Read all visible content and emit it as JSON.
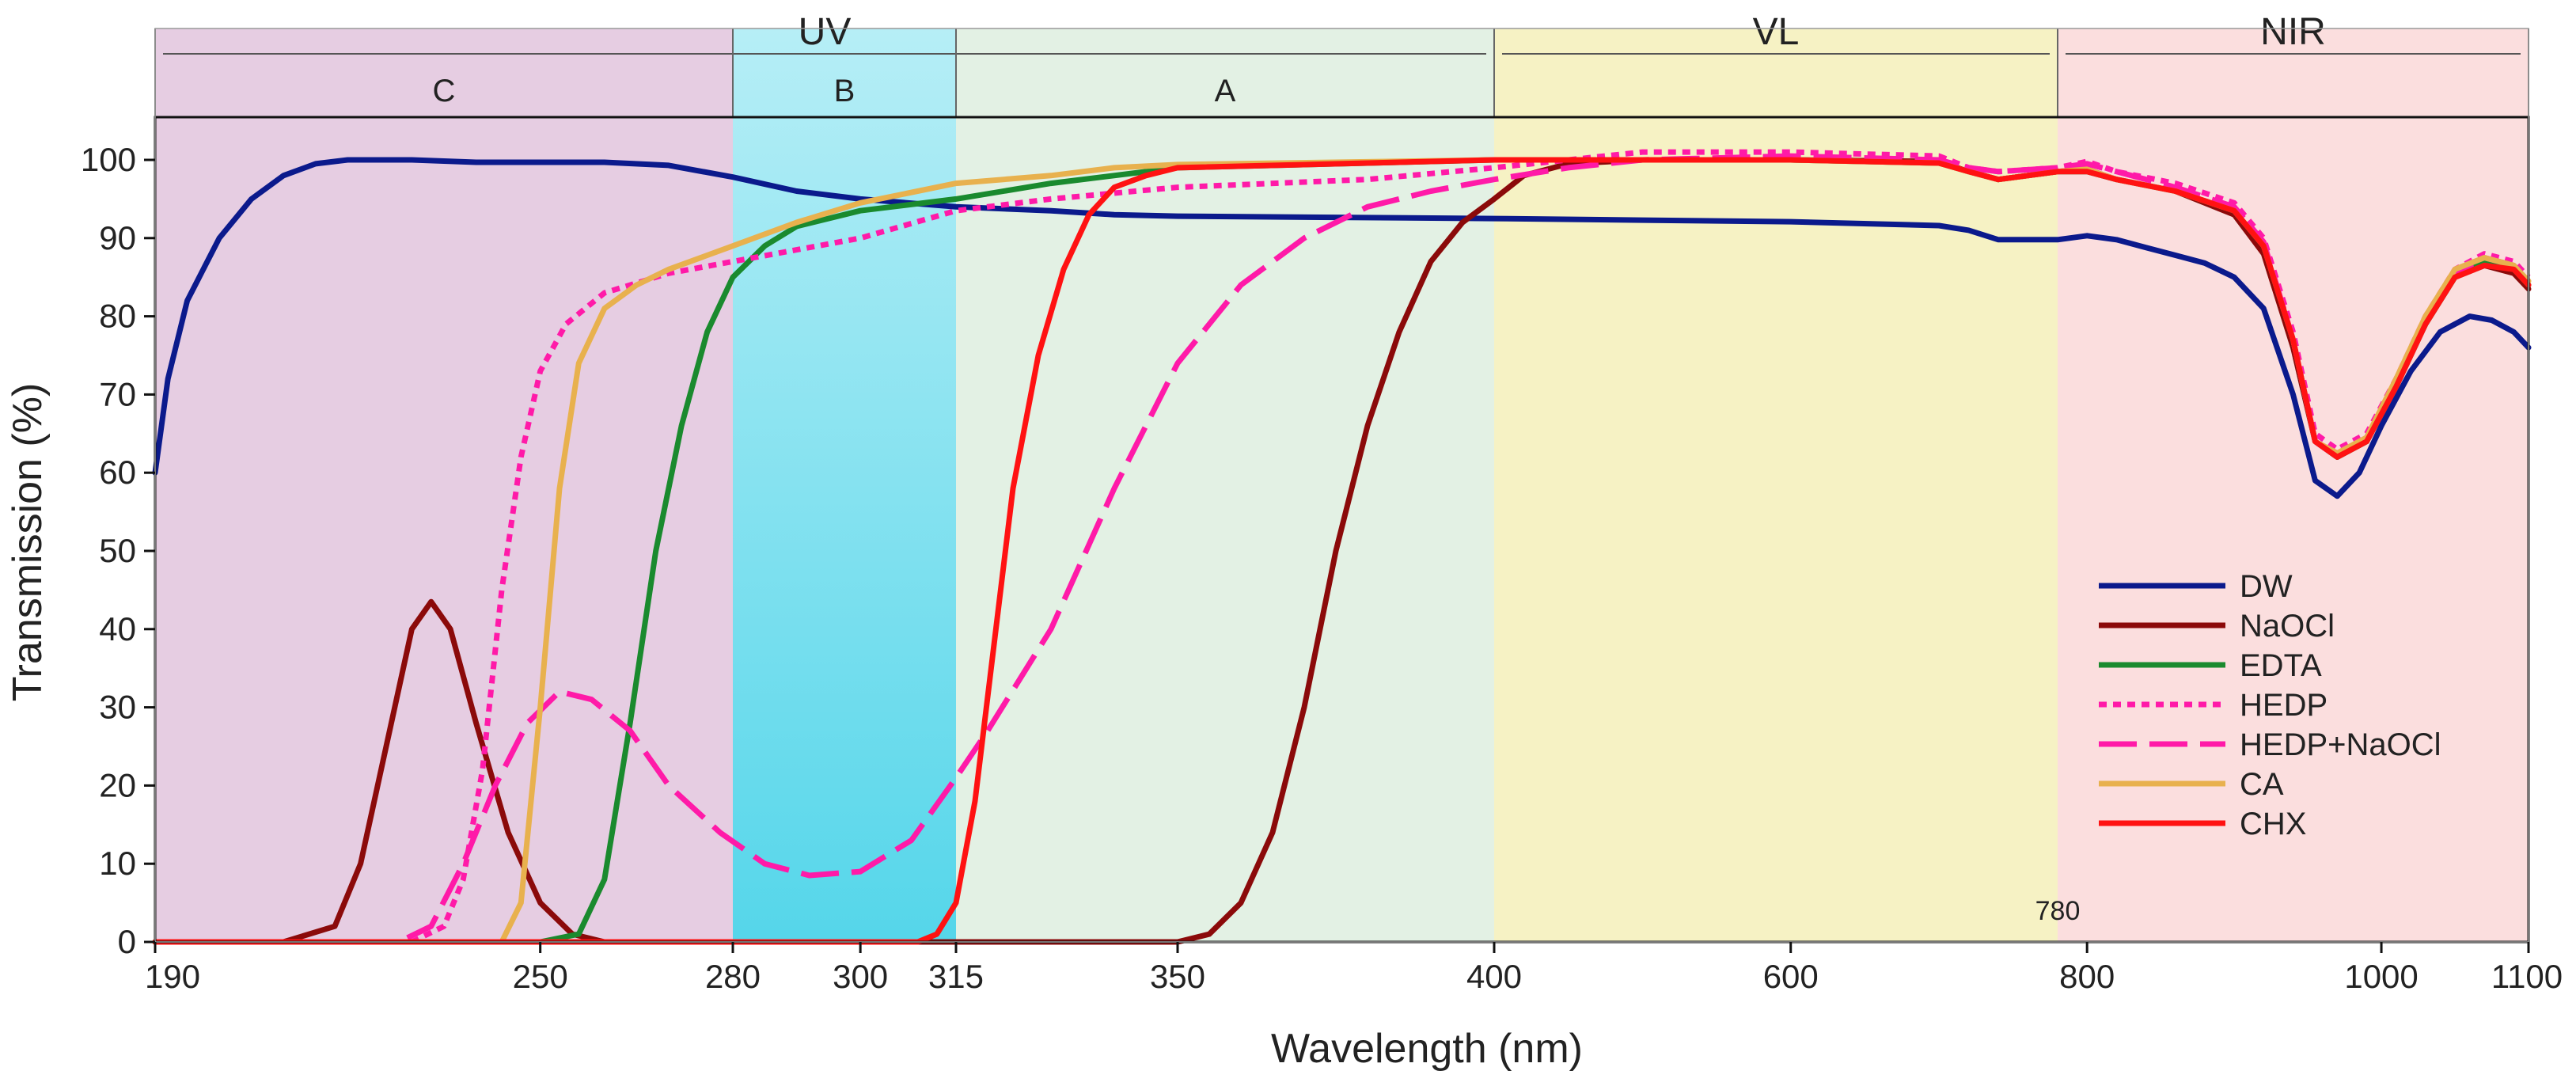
{
  "chart_data": {
    "type": "line",
    "xlabel": "Wavelength (nm)",
    "ylabel": "Transmission (%)",
    "ylim": [
      0,
      105
    ],
    "xlim": [
      190,
      1100
    ],
    "x_scale": "piecewise: 190-400 nm expanded, 400-1100 nm compressed",
    "x_ticks": [
      190,
      250,
      280,
      300,
      315,
      350,
      400,
      600,
      780,
      800,
      1000,
      1100
    ],
    "x_tick_labels": [
      "190",
      "250",
      "280",
      "300",
      "315",
      "350",
      "400",
      "600",
      "780",
      "800",
      "1000",
      "1100"
    ],
    "y_ticks": [
      0,
      10,
      20,
      30,
      40,
      50,
      60,
      70,
      80,
      90,
      100
    ],
    "y_tick_labels": [
      "0",
      "10",
      "20",
      "30",
      "40",
      "50",
      "60",
      "70",
      "80",
      "90",
      "100"
    ],
    "regions": [
      {
        "label": "C",
        "from": 190,
        "to": 280,
        "color": "#e6cde2"
      },
      {
        "label": "B",
        "from": 280,
        "to": 315,
        "color": "#6fdcec"
      },
      {
        "label": "A",
        "from": 315,
        "to": 400,
        "color": "#e3f1e4"
      },
      {
        "label": "VL",
        "from": 400,
        "to": 780,
        "color": "#f6f2c4"
      },
      {
        "label": "NIR",
        "from": 780,
        "to": 1100,
        "color": "#fbdede"
      }
    ],
    "top_groups": [
      {
        "label": "UV",
        "from": 190,
        "to": 400
      },
      {
        "label": "VL",
        "from": 400,
        "to": 780
      },
      {
        "label": "NIR",
        "from": 780,
        "to": 1100
      }
    ],
    "legend_position": "lower-right",
    "series": [
      {
        "name": "DW",
        "color": "#0b1a8c",
        "dash": "solid",
        "points": [
          [
            190,
            60
          ],
          [
            192,
            72
          ],
          [
            195,
            82
          ],
          [
            200,
            90
          ],
          [
            205,
            95
          ],
          [
            210,
            98
          ],
          [
            215,
            99.5
          ],
          [
            220,
            100
          ],
          [
            230,
            100
          ],
          [
            240,
            99.7
          ],
          [
            260,
            99.7
          ],
          [
            270,
            99.3
          ],
          [
            280,
            97.8
          ],
          [
            290,
            96
          ],
          [
            300,
            95
          ],
          [
            315,
            94
          ],
          [
            330,
            93.5
          ],
          [
            340,
            93
          ],
          [
            350,
            92.8
          ],
          [
            400,
            92.5
          ],
          [
            500,
            92.3
          ],
          [
            600,
            92.1
          ],
          [
            700,
            91.6
          ],
          [
            720,
            91
          ],
          [
            740,
            89.8
          ],
          [
            780,
            89.8
          ],
          [
            800,
            90.3
          ],
          [
            820,
            89.8
          ],
          [
            840,
            88.8
          ],
          [
            860,
            87.8
          ],
          [
            880,
            86.8
          ],
          [
            900,
            85
          ],
          [
            920,
            81
          ],
          [
            940,
            70
          ],
          [
            955,
            59
          ],
          [
            970,
            57
          ],
          [
            985,
            60
          ],
          [
            1000,
            66
          ],
          [
            1020,
            73
          ],
          [
            1040,
            78
          ],
          [
            1060,
            80
          ],
          [
            1075,
            79.5
          ],
          [
            1090,
            78
          ],
          [
            1100,
            76
          ]
        ]
      },
      {
        "name": "NaOCl",
        "color": "#8b0a0a",
        "dash": "solid",
        "points": [
          [
            190,
            0
          ],
          [
            210,
            0
          ],
          [
            218,
            2
          ],
          [
            222,
            10
          ],
          [
            226,
            25
          ],
          [
            230,
            40
          ],
          [
            233,
            43.5
          ],
          [
            236,
            40
          ],
          [
            240,
            28
          ],
          [
            245,
            14
          ],
          [
            250,
            5
          ],
          [
            255,
            1
          ],
          [
            260,
            0
          ],
          [
            350,
            0
          ],
          [
            355,
            1
          ],
          [
            360,
            5
          ],
          [
            365,
            14
          ],
          [
            370,
            30
          ],
          [
            375,
            50
          ],
          [
            380,
            66
          ],
          [
            385,
            78
          ],
          [
            390,
            87
          ],
          [
            395,
            92
          ],
          [
            400,
            95
          ],
          [
            420,
            98
          ],
          [
            450,
            99.5
          ],
          [
            500,
            100
          ],
          [
            600,
            100
          ],
          [
            700,
            99.8
          ],
          [
            720,
            98.5
          ],
          [
            740,
            97.5
          ],
          [
            780,
            98.5
          ],
          [
            800,
            98.8
          ],
          [
            820,
            97.5
          ],
          [
            860,
            96
          ],
          [
            900,
            93
          ],
          [
            920,
            88
          ],
          [
            940,
            76
          ],
          [
            955,
            64
          ],
          [
            970,
            62
          ],
          [
            990,
            64
          ],
          [
            1010,
            71
          ],
          [
            1030,
            79
          ],
          [
            1050,
            85
          ],
          [
            1070,
            86.5
          ],
          [
            1090,
            85.5
          ],
          [
            1100,
            83.5
          ]
        ]
      },
      {
        "name": "EDTA",
        "color": "#1a8a2e",
        "dash": "solid",
        "points": [
          [
            190,
            0
          ],
          [
            250,
            0
          ],
          [
            256,
            1
          ],
          [
            260,
            8
          ],
          [
            264,
            28
          ],
          [
            268,
            50
          ],
          [
            272,
            66
          ],
          [
            276,
            78
          ],
          [
            280,
            85
          ],
          [
            285,
            89
          ],
          [
            290,
            91.5
          ],
          [
            300,
            93.5
          ],
          [
            315,
            95
          ],
          [
            330,
            97
          ],
          [
            350,
            99
          ],
          [
            380,
            99.6
          ],
          [
            400,
            100
          ],
          [
            500,
            100
          ],
          [
            600,
            100
          ],
          [
            700,
            99.6
          ],
          [
            720,
            98.5
          ],
          [
            740,
            97.5
          ],
          [
            780,
            98.5
          ],
          [
            800,
            98.5
          ],
          [
            820,
            97.5
          ],
          [
            860,
            96
          ],
          [
            900,
            93.5
          ],
          [
            920,
            89
          ],
          [
            940,
            77
          ],
          [
            955,
            64
          ],
          [
            970,
            62
          ],
          [
            990,
            64
          ],
          [
            1010,
            71.5
          ],
          [
            1030,
            79
          ],
          [
            1050,
            85
          ],
          [
            1070,
            87
          ],
          [
            1090,
            86
          ],
          [
            1100,
            84
          ]
        ]
      },
      {
        "name": "HEDP",
        "color": "#ff1aa8",
        "dash": "dotted",
        "points": [
          [
            190,
            0
          ],
          [
            230,
            0
          ],
          [
            235,
            2
          ],
          [
            238,
            8
          ],
          [
            241,
            22
          ],
          [
            244,
            45
          ],
          [
            247,
            62
          ],
          [
            250,
            73
          ],
          [
            254,
            79
          ],
          [
            260,
            83
          ],
          [
            270,
            85.5
          ],
          [
            280,
            87
          ],
          [
            290,
            88.5
          ],
          [
            300,
            90
          ],
          [
            315,
            93.5
          ],
          [
            330,
            95
          ],
          [
            350,
            96.5
          ],
          [
            380,
            97.5
          ],
          [
            400,
            99
          ],
          [
            500,
            101
          ],
          [
            600,
            101
          ],
          [
            700,
            100.5
          ],
          [
            720,
            99
          ],
          [
            740,
            98.5
          ],
          [
            780,
            99
          ],
          [
            800,
            99.8
          ],
          [
            820,
            98.5
          ],
          [
            860,
            97
          ],
          [
            900,
            94.5
          ],
          [
            920,
            90
          ],
          [
            940,
            78
          ],
          [
            955,
            65
          ],
          [
            970,
            63
          ],
          [
            990,
            65
          ],
          [
            1010,
            72
          ],
          [
            1030,
            80
          ],
          [
            1050,
            86
          ],
          [
            1070,
            88
          ],
          [
            1090,
            87
          ],
          [
            1100,
            85
          ]
        ]
      },
      {
        "name": "HEDP+NaOCl",
        "color": "#ff1aa8",
        "dash": "longdash",
        "points": [
          [
            190,
            0
          ],
          [
            228,
            0
          ],
          [
            233,
            2
          ],
          [
            238,
            10
          ],
          [
            243,
            20
          ],
          [
            248,
            28
          ],
          [
            253,
            32
          ],
          [
            258,
            31
          ],
          [
            264,
            27
          ],
          [
            270,
            20
          ],
          [
            278,
            14
          ],
          [
            285,
            10
          ],
          [
            292,
            8.5
          ],
          [
            300,
            9
          ],
          [
            308,
            13
          ],
          [
            315,
            21
          ],
          [
            320,
            27
          ],
          [
            330,
            40
          ],
          [
            340,
            58
          ],
          [
            350,
            74
          ],
          [
            360,
            84
          ],
          [
            370,
            90
          ],
          [
            380,
            94
          ],
          [
            390,
            96
          ],
          [
            400,
            97.5
          ],
          [
            450,
            99
          ],
          [
            500,
            100
          ],
          [
            600,
            100.5
          ],
          [
            700,
            100
          ],
          [
            720,
            99
          ],
          [
            740,
            98.5
          ],
          [
            780,
            99
          ],
          [
            800,
            99.5
          ],
          [
            820,
            98.5
          ],
          [
            860,
            96.5
          ],
          [
            900,
            94
          ],
          [
            920,
            89.5
          ],
          [
            940,
            77
          ],
          [
            955,
            64
          ],
          [
            970,
            62
          ],
          [
            990,
            64.5
          ],
          [
            1010,
            71.5
          ],
          [
            1030,
            79.5
          ],
          [
            1050,
            85.5
          ],
          [
            1070,
            87.5
          ],
          [
            1090,
            86.5
          ],
          [
            1100,
            84.5
          ]
        ]
      },
      {
        "name": "CA",
        "color": "#e8b14e",
        "dash": "solid",
        "points": [
          [
            190,
            0
          ],
          [
            244,
            0
          ],
          [
            247,
            5
          ],
          [
            250,
            30
          ],
          [
            253,
            58
          ],
          [
            256,
            74
          ],
          [
            260,
            81
          ],
          [
            265,
            84
          ],
          [
            270,
            86
          ],
          [
            280,
            89
          ],
          [
            290,
            92
          ],
          [
            300,
            94.5
          ],
          [
            315,
            97
          ],
          [
            330,
            98
          ],
          [
            340,
            99
          ],
          [
            350,
            99.4
          ],
          [
            400,
            100
          ],
          [
            500,
            100
          ],
          [
            600,
            100
          ],
          [
            700,
            99.6
          ],
          [
            720,
            98.5
          ],
          [
            740,
            97.5
          ],
          [
            780,
            98.5
          ],
          [
            800,
            98.8
          ],
          [
            820,
            97.5
          ],
          [
            860,
            96
          ],
          [
            900,
            93.5
          ],
          [
            920,
            89
          ],
          [
            940,
            77
          ],
          [
            955,
            64
          ],
          [
            970,
            62.5
          ],
          [
            990,
            64.5
          ],
          [
            1010,
            72
          ],
          [
            1030,
            80
          ],
          [
            1050,
            86
          ],
          [
            1070,
            87.5
          ],
          [
            1090,
            86.5
          ],
          [
            1100,
            84.5
          ]
        ]
      },
      {
        "name": "CHX",
        "color": "#ff1212",
        "dash": "solid",
        "points": [
          [
            190,
            0
          ],
          [
            309,
            0
          ],
          [
            312,
            1
          ],
          [
            315,
            5
          ],
          [
            318,
            18
          ],
          [
            321,
            38
          ],
          [
            324,
            58
          ],
          [
            328,
            75
          ],
          [
            332,
            86
          ],
          [
            336,
            93
          ],
          [
            340,
            96.5
          ],
          [
            345,
            98
          ],
          [
            350,
            99
          ],
          [
            400,
            100
          ],
          [
            500,
            100
          ],
          [
            600,
            100
          ],
          [
            700,
            99.6
          ],
          [
            720,
            98.5
          ],
          [
            740,
            97.5
          ],
          [
            780,
            98.5
          ],
          [
            800,
            98.5
          ],
          [
            820,
            97.5
          ],
          [
            860,
            96
          ],
          [
            900,
            93.5
          ],
          [
            920,
            89
          ],
          [
            940,
            77
          ],
          [
            955,
            64
          ],
          [
            970,
            62
          ],
          [
            990,
            64
          ],
          [
            1010,
            71
          ],
          [
            1030,
            79
          ],
          [
            1050,
            85
          ],
          [
            1070,
            86.5
          ],
          [
            1090,
            86
          ],
          [
            1100,
            84
          ]
        ]
      }
    ]
  }
}
